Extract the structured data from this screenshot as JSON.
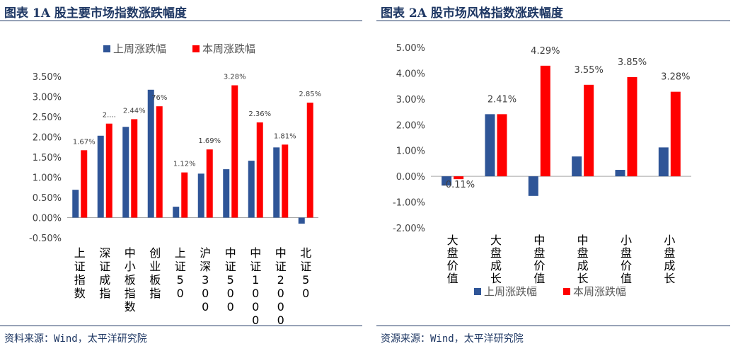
{
  "left": {
    "title": "图表 1A 股主要市场指数涨跌幅度",
    "source": "资料来源：Wind，太平洋研究院"
  },
  "right": {
    "title": "图表 2A 股市场风格指数涨跌幅度",
    "source": "资源来源：Wind，太平洋研究院"
  },
  "chart_data": [
    {
      "type": "bar",
      "categories": [
        "上证指数",
        "深证成指",
        "中小板指数",
        "创业板指",
        "上证50",
        "沪深300",
        "中证500",
        "中证1000",
        "中证2000",
        "北证50"
      ],
      "series": [
        {
          "name": "上周涨跌幅",
          "values": [
            0.69,
            2.03,
            2.25,
            3.17,
            0.27,
            1.09,
            1.2,
            1.41,
            1.74,
            -0.15
          ]
        },
        {
          "name": "本周涨跌幅",
          "values": [
            1.67,
            2.33,
            2.44,
            2.76,
            1.12,
            1.69,
            3.28,
            2.36,
            1.81,
            2.85
          ]
        }
      ],
      "data_labels": [
        "1.67%",
        "2....",
        "2.44%",
        "76%",
        "1.12%",
        "1.69%",
        "3.28%",
        "2.36%",
        "1.81%",
        "2.85%"
      ],
      "yticks": [
        "-0.50%",
        "0.00%",
        "0.50%",
        "1.00%",
        "1.50%",
        "2.00%",
        "2.50%",
        "3.00%",
        "3.50%"
      ],
      "ylim": [
        -0.5,
        3.5
      ],
      "legend": "top",
      "colors": [
        "#2f5597",
        "#ff0000"
      ]
    },
    {
      "type": "bar",
      "categories": [
        "大盘价值",
        "大盘成长",
        "中盘价值",
        "中盘成长",
        "小盘价值",
        "小盘成长"
      ],
      "series": [
        {
          "name": "上周涨跌幅",
          "values": [
            -0.36,
            2.41,
            -0.76,
            0.77,
            0.25,
            1.12
          ]
        },
        {
          "name": "本周涨跌幅",
          "values": [
            -0.11,
            2.41,
            4.29,
            3.55,
            3.85,
            3.28
          ]
        }
      ],
      "data_labels": [
        "-0.11%",
        "2.41%",
        "4.29%",
        "3.55%",
        "3.85%",
        "3.28%"
      ],
      "yticks": [
        "-2.00%",
        "-1.00%",
        "0.00%",
        "1.00%",
        "2.00%",
        "3.00%",
        "4.00%",
        "5.00%"
      ],
      "ylim": [
        -2,
        5
      ],
      "legend": "bottom",
      "colors": [
        "#2f5597",
        "#ff0000"
      ]
    }
  ]
}
